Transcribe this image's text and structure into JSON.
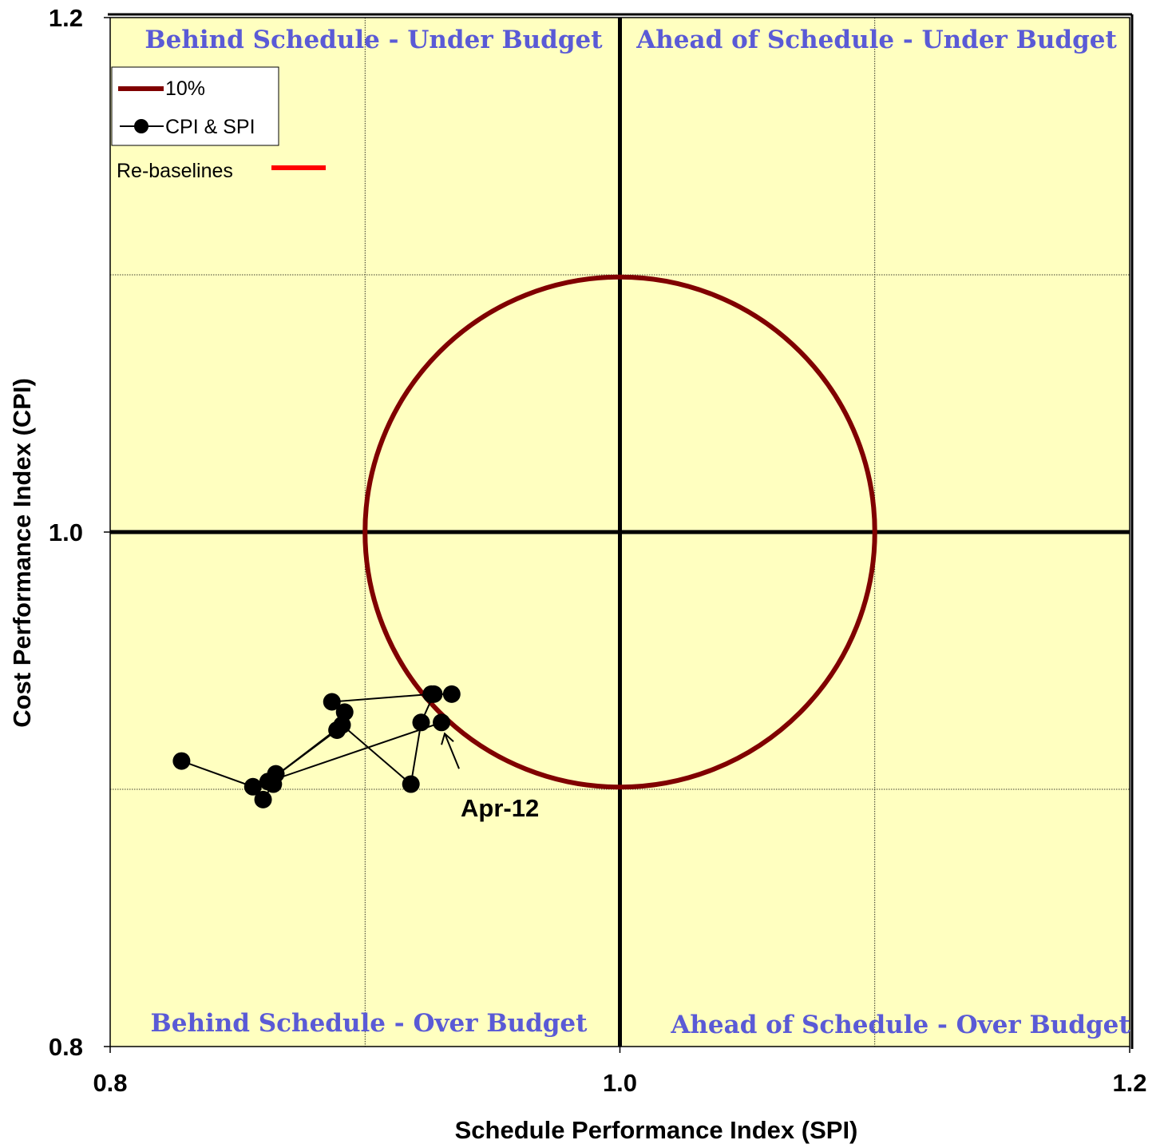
{
  "colors": {
    "plot_background": "#ffffc0",
    "circle": "#800000",
    "quadrant_text": "#5a5ad6",
    "series": "#000000",
    "rebaseline": "#ff0000"
  },
  "chart_data": {
    "type": "scatter",
    "title": "",
    "xlabel": "Schedule Performance Index (SPI)",
    "ylabel": "Cost Performance Index (CPI)",
    "xlim": [
      0.8,
      1.2
    ],
    "ylim": [
      0.8,
      1.2
    ],
    "x_tick_labels": [
      "0.8",
      "1.0",
      "1.2"
    ],
    "y_tick_labels": [
      "1.2",
      "1.0",
      "0.8"
    ],
    "x_ticks": [
      0.8,
      1.0,
      1.2
    ],
    "y_ticks": [
      1.2,
      1.0,
      0.8
    ],
    "minor_grid": [
      0.9,
      1.1
    ],
    "grid": true,
    "quadrants": {
      "top_left": "Behind Schedule - Under Budget",
      "top_right": "Ahead of Schedule - Under Budget",
      "bottom_left": "Behind Schedule - Over Budget",
      "bottom_right": "Ahead of Schedule - Over Budget"
    },
    "reference_circle": {
      "center": [
        1.0,
        1.0
      ],
      "radius": 0.1,
      "legend": "10%"
    },
    "series": [
      {
        "name": "CPI & SPI",
        "points": [
          {
            "x": 0.828,
            "y": 0.911
          },
          {
            "x": 0.856,
            "y": 0.901
          },
          {
            "x": 0.86,
            "y": 0.896
          },
          {
            "x": 0.864,
            "y": 0.902
          },
          {
            "x": 0.865,
            "y": 0.906
          },
          {
            "x": 0.862,
            "y": 0.903
          },
          {
            "x": 0.889,
            "y": 0.923
          },
          {
            "x": 0.892,
            "y": 0.93
          },
          {
            "x": 0.887,
            "y": 0.934
          },
          {
            "x": 0.926,
            "y": 0.937
          },
          {
            "x": 0.934,
            "y": 0.937
          },
          {
            "x": 0.927,
            "y": 0.937
          },
          {
            "x": 0.922,
            "y": 0.926
          },
          {
            "x": 0.918,
            "y": 0.902
          },
          {
            "x": 0.891,
            "y": 0.925
          },
          {
            "x": 0.862,
            "y": 0.903
          },
          {
            "x": 0.93,
            "y": 0.926
          }
        ]
      }
    ],
    "annotation": {
      "text": "Apr-12",
      "target": {
        "x": 0.93,
        "y": 0.926
      }
    },
    "legend": {
      "placement": "top-left",
      "entries": [
        "10%",
        "CPI & SPI"
      ],
      "rebaseline_label": "Re-baselines"
    }
  }
}
